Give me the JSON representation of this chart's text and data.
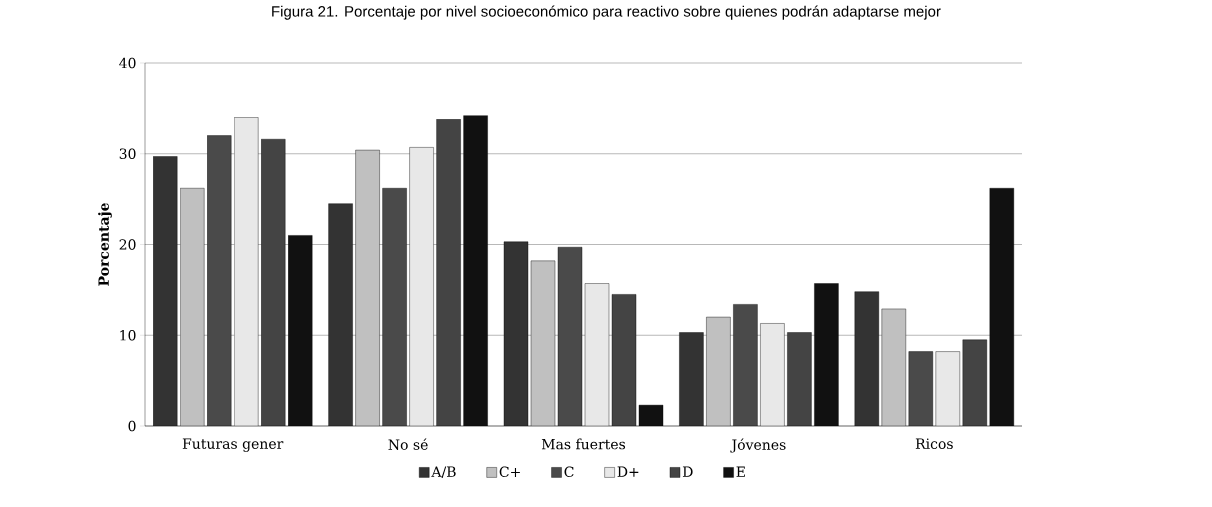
{
  "chart_data": {
    "type": "bar",
    "title": "Figura 21. Porcentaje por nivel socioeconómico para reactivo sobre quienes podrán adaptarse mejor",
    "ylabel": "Porcentaje",
    "categories": [
      "Futuras gener",
      "No sé",
      "Mas fuertes",
      "Jóvenes",
      "Ricos"
    ],
    "series": [
      {
        "name": "A/B",
        "color": "#333333",
        "values": [
          29.7,
          24.5,
          20.3,
          10.3,
          14.8
        ]
      },
      {
        "name": "C+",
        "color": "#c0c0c0",
        "values": [
          26.2,
          30.4,
          18.2,
          12.0,
          12.9
        ]
      },
      {
        "name": "C",
        "color": "#4a4a4a",
        "values": [
          32.0,
          26.2,
          19.7,
          13.4,
          8.2
        ]
      },
      {
        "name": "D+",
        "color": "#e8e8e8",
        "values": [
          34.0,
          30.7,
          15.7,
          11.3,
          8.2
        ]
      },
      {
        "name": "D",
        "color": "#444444",
        "values": [
          31.6,
          33.8,
          14.5,
          10.3,
          9.5
        ]
      },
      {
        "name": "E",
        "color": "#111111",
        "values": [
          21.0,
          34.2,
          2.3,
          15.7,
          26.2
        ]
      }
    ],
    "ylim": [
      0,
      40
    ],
    "yticks": [
      0,
      10,
      20,
      30,
      40
    ],
    "grid": "y",
    "legend": "bottom"
  }
}
